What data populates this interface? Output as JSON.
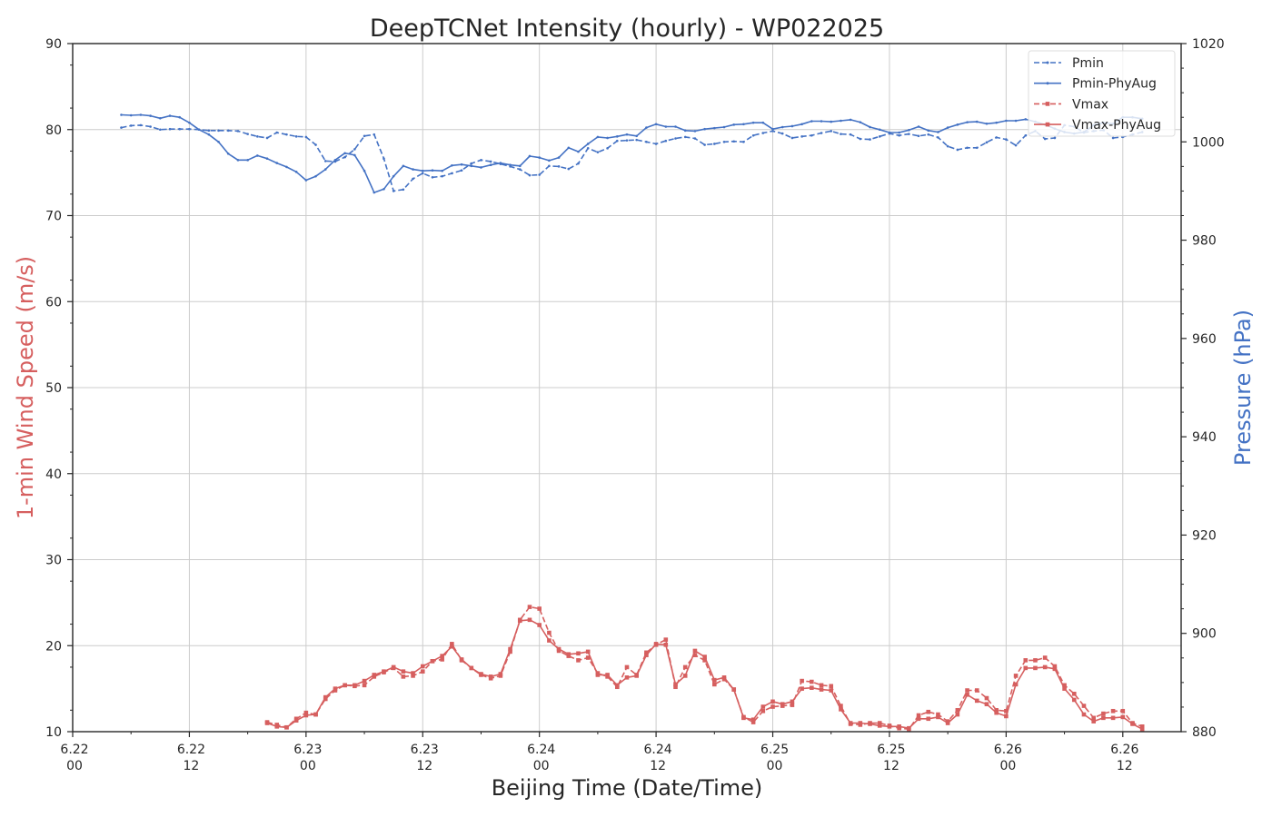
{
  "colors": {
    "pressure": "#4472C4",
    "wind": "#D65F5F",
    "grid": "#CCCCCC",
    "axis": "#262626"
  },
  "chart_data": {
    "type": "line",
    "title": "DeepTCNet Intensity (hourly) - WP022025",
    "xlabel": "Beijing Time (Date/Time)",
    "ylabel_left": "1-min Wind Speed (m/s)",
    "ylabel_right": "Pressure (hPa)",
    "x_unit": "hours since first tick (6.22 00)",
    "xlim": [
      0,
      114
    ],
    "ylim_left": [
      10,
      90
    ],
    "ylim_right": [
      880,
      1020
    ],
    "grid": true,
    "legend_position": "top-right",
    "x_ticks": [
      {
        "x": 0,
        "date": "6.22",
        "hour": "00"
      },
      {
        "x": 12,
        "date": "6.22",
        "hour": "12"
      },
      {
        "x": 24,
        "date": "6.23",
        "hour": "00"
      },
      {
        "x": 36,
        "date": "6.23",
        "hour": "12"
      },
      {
        "x": 48,
        "date": "6.24",
        "hour": "00"
      },
      {
        "x": 60,
        "date": "6.24",
        "hour": "12"
      },
      {
        "x": 72,
        "date": "6.25",
        "hour": "00"
      },
      {
        "x": 84,
        "date": "6.25",
        "hour": "12"
      },
      {
        "x": 96,
        "date": "6.26",
        "hour": "00"
      },
      {
        "x": 108,
        "date": "6.26",
        "hour": "12"
      }
    ],
    "y_ticks_left": [
      "10",
      "20",
      "30",
      "40",
      "50",
      "60",
      "70",
      "80",
      "90"
    ],
    "y_ticks_right": [
      "880",
      "900",
      "920",
      "940",
      "960",
      "980",
      "1000",
      "1020"
    ],
    "series": [
      {
        "name": "Pmin",
        "axis": "right",
        "style": "dashed",
        "color": "#4472C4",
        "x": [
          5,
          6,
          7,
          8,
          9,
          10,
          11,
          12,
          13,
          14,
          15,
          16,
          17,
          18,
          19,
          20,
          21,
          22,
          23,
          24,
          25,
          26,
          27,
          28,
          29,
          30,
          31,
          32,
          33,
          34,
          35,
          36,
          37,
          38,
          39,
          40,
          41,
          42,
          43,
          44,
          45,
          46,
          47,
          48,
          49,
          50,
          51,
          52,
          53,
          54,
          55,
          56,
          57,
          58,
          59,
          60,
          61,
          62,
          63,
          64,
          65,
          66,
          67,
          68,
          69,
          70,
          71,
          72,
          73,
          74,
          75,
          76,
          77,
          78,
          79,
          80,
          81,
          82,
          83,
          84,
          85,
          86,
          87,
          88,
          89,
          90,
          91,
          92,
          93,
          94,
          95,
          96,
          97,
          98,
          99,
          100,
          101,
          102,
          103,
          104,
          105,
          106,
          107,
          108,
          109,
          110
        ],
        "values": [
          1002.9,
          1003.3,
          1003.4,
          1003.1,
          1002.5,
          1002.6,
          1002.6,
          1002.6,
          1002.5,
          1002.3,
          1002.3,
          1002.3,
          1002.2,
          1001.6,
          1001.1,
          1000.8,
          1001.9,
          1001.5,
          1001.1,
          1001.0,
          999.4,
          996.1,
          996.0,
          996.9,
          998.5,
          1001.2,
          1001.5,
          996.6,
          990.0,
          990.3,
          992.5,
          993.6,
          992.8,
          993.0,
          993.6,
          994.2,
          995.6,
          996.3,
          996.0,
          995.5,
          995.0,
          994.4,
          993.2,
          993.3,
          995.1,
          995.0,
          994.5,
          995.6,
          998.7,
          997.9,
          998.7,
          1000.2,
          1000.3,
          1000.4,
          1000.0,
          999.6,
          1000.2,
          1000.7,
          1001.0,
          1000.7,
          999.4,
          999.6,
          1000.0,
          1000.1,
          1000.0,
          1001.3,
          1001.8,
          1002.2,
          1001.7,
          1000.8,
          1001.1,
          1001.3,
          1001.8,
          1002.2,
          1001.6,
          1001.5,
          1000.6,
          1000.5,
          1001.1,
          1001.7,
          1001.3,
          1001.6,
          1001.2,
          1001.5,
          1000.9,
          999.1,
          998.4,
          998.8,
          998.8,
          999.9,
          1000.9,
          1000.5,
          999.3,
          1001.3,
          1002.2,
          1000.6,
          1000.8,
          1003.4,
          1003.1,
          1001.9,
          1002.2,
          1002.4,
          1000.8,
          1001.0,
          1001.5,
          1002.0
        ]
      },
      {
        "name": "Pmin-PhyAug",
        "axis": "right",
        "style": "solid",
        "color": "#4472C4",
        "x": [
          5,
          6,
          7,
          8,
          9,
          10,
          11,
          12,
          13,
          14,
          15,
          16,
          17,
          18,
          19,
          20,
          21,
          22,
          23,
          24,
          25,
          26,
          27,
          28,
          29,
          30,
          31,
          32,
          33,
          34,
          35,
          36,
          37,
          38,
          39,
          40,
          41,
          42,
          43,
          44,
          45,
          46,
          47,
          48,
          49,
          50,
          51,
          52,
          53,
          54,
          55,
          56,
          57,
          58,
          59,
          60,
          61,
          62,
          63,
          64,
          65,
          66,
          67,
          68,
          69,
          70,
          71,
          72,
          73,
          74,
          75,
          76,
          77,
          78,
          79,
          80,
          81,
          82,
          83,
          84,
          85,
          86,
          87,
          88,
          89,
          90,
          91,
          92,
          93,
          94,
          95,
          96,
          97,
          98,
          99,
          100,
          101,
          102,
          103,
          104,
          105,
          106,
          107,
          108,
          109,
          110
        ],
        "values": [
          1005.5,
          1005.4,
          1005.5,
          1005.3,
          1004.8,
          1005.3,
          1005.0,
          1003.9,
          1002.5,
          1001.5,
          1000.0,
          997.6,
          996.3,
          996.3,
          997.2,
          996.6,
          995.7,
          994.9,
          993.9,
          992.2,
          993.0,
          994.4,
          996.3,
          997.7,
          997.3,
          994.1,
          989.7,
          990.4,
          993.0,
          995.1,
          994.4,
          994.1,
          994.2,
          994.1,
          995.2,
          995.4,
          995.1,
          994.8,
          995.3,
          995.7,
          995.3,
          995.1,
          997.1,
          996.8,
          996.2,
          996.8,
          998.8,
          998.0,
          999.6,
          1001.0,
          1000.8,
          1001.1,
          1001.5,
          1001.2,
          1002.9,
          1003.6,
          1003.1,
          1003.1,
          1002.3,
          1002.2,
          1002.6,
          1002.8,
          1003.0,
          1003.5,
          1003.6,
          1003.9,
          1003.9,
          1002.6,
          1003.0,
          1003.2,
          1003.6,
          1004.2,
          1004.2,
          1004.1,
          1004.3,
          1004.5,
          1004.0,
          1003.0,
          1002.5,
          1001.9,
          1001.9,
          1002.4,
          1003.1,
          1002.3,
          1002.0,
          1002.9,
          1003.5,
          1004.0,
          1004.1,
          1003.7,
          1003.9,
          1004.3,
          1004.3,
          1004.6,
          1004.1,
          1003.5,
          1002.7,
          1002.0,
          1001.7,
          1002.0,
          1003.4,
          1003.9,
          1003.7,
          1005.0,
          1005.0,
          1004.7
        ]
      },
      {
        "name": "Vmax",
        "axis": "left",
        "style": "dashed",
        "color": "#D65F5F",
        "x": [
          20,
          21,
          22,
          23,
          24,
          25,
          26,
          27,
          28,
          29,
          30,
          31,
          32,
          33,
          34,
          35,
          36,
          37,
          38,
          39,
          40,
          41,
          42,
          43,
          44,
          45,
          46,
          47,
          48,
          49,
          50,
          51,
          52,
          53,
          54,
          55,
          56,
          57,
          58,
          59,
          60,
          61,
          62,
          63,
          64,
          65,
          66,
          67,
          68,
          69,
          70,
          71,
          72,
          73,
          74,
          75,
          76,
          77,
          78,
          79,
          80,
          81,
          82,
          83,
          84,
          85,
          86,
          87,
          88,
          89,
          90,
          91,
          92,
          93,
          94,
          95,
          96,
          97,
          98,
          99,
          100,
          101,
          102,
          103,
          104,
          105,
          106,
          107,
          108,
          109,
          110
        ],
        "values": [
          11.1,
          10.8,
          10.5,
          11.5,
          12.2,
          12.0,
          13.8,
          14.8,
          15.4,
          15.3,
          15.4,
          16.4,
          16.9,
          17.4,
          16.4,
          16.5,
          17.0,
          18.2,
          18.4,
          20.2,
          18.3,
          17.4,
          16.6,
          16.2,
          16.5,
          19.3,
          23.0,
          24.5,
          24.3,
          21.5,
          19.4,
          18.8,
          18.3,
          18.6,
          16.8,
          16.4,
          15.2,
          17.5,
          16.6,
          19.2,
          20.1,
          20.7,
          15.2,
          17.5,
          18.9,
          18.3,
          15.5,
          16.1,
          14.9,
          11.7,
          11.1,
          12.4,
          12.9,
          13.0,
          13.1,
          15.9,
          15.8,
          15.4,
          15.3,
          13.0,
          10.9,
          10.8,
          11.0,
          11.0,
          10.7,
          10.4,
          10.3,
          11.9,
          12.3,
          12.0,
          11.2,
          12.5,
          14.8,
          14.8,
          13.9,
          12.5,
          12.4,
          16.5,
          18.3,
          18.3,
          18.6,
          17.6,
          15.4,
          14.4,
          13.0,
          11.6,
          12.1,
          12.4,
          12.4,
          11.0,
          10.6
        ]
      },
      {
        "name": "Vmax-PhyAug",
        "axis": "left",
        "style": "solid",
        "color": "#D65F5F",
        "x": [
          20,
          21,
          22,
          23,
          24,
          25,
          26,
          27,
          28,
          29,
          30,
          31,
          32,
          33,
          34,
          35,
          36,
          37,
          38,
          39,
          40,
          41,
          42,
          43,
          44,
          45,
          46,
          47,
          48,
          49,
          50,
          51,
          52,
          53,
          54,
          55,
          56,
          57,
          58,
          59,
          60,
          61,
          62,
          63,
          64,
          65,
          66,
          67,
          68,
          69,
          70,
          71,
          72,
          73,
          74,
          75,
          76,
          77,
          78,
          79,
          80,
          81,
          82,
          83,
          84,
          85,
          86,
          87,
          88,
          89,
          90,
          91,
          92,
          93,
          94,
          95,
          96,
          97,
          98,
          99,
          100,
          101,
          102,
          103,
          104,
          105,
          106,
          107,
          108,
          109,
          110
        ],
        "values": [
          11.0,
          10.6,
          10.5,
          11.3,
          11.9,
          12.0,
          14.0,
          15.0,
          15.4,
          15.4,
          15.9,
          16.6,
          17.0,
          17.5,
          17.0,
          16.8,
          17.6,
          18.2,
          18.8,
          19.9,
          18.4,
          17.4,
          16.7,
          16.4,
          16.7,
          19.6,
          22.9,
          23.0,
          22.4,
          20.6,
          19.6,
          19.0,
          19.1,
          19.3,
          16.6,
          16.6,
          15.4,
          16.3,
          16.5,
          18.9,
          20.2,
          20.1,
          15.5,
          16.5,
          19.4,
          18.7,
          16.0,
          16.3,
          14.9,
          11.6,
          11.4,
          12.9,
          13.5,
          13.2,
          13.5,
          15.0,
          15.1,
          14.9,
          14.8,
          12.6,
          11.0,
          11.0,
          10.9,
          10.7,
          10.6,
          10.6,
          10.4,
          11.5,
          11.5,
          11.7,
          11.0,
          12.0,
          14.3,
          13.6,
          13.2,
          12.2,
          11.8,
          15.5,
          17.4,
          17.4,
          17.5,
          17.3,
          15.0,
          13.7,
          12.0,
          11.2,
          11.6,
          11.6,
          11.7,
          10.9,
          10.3
        ]
      }
    ]
  }
}
